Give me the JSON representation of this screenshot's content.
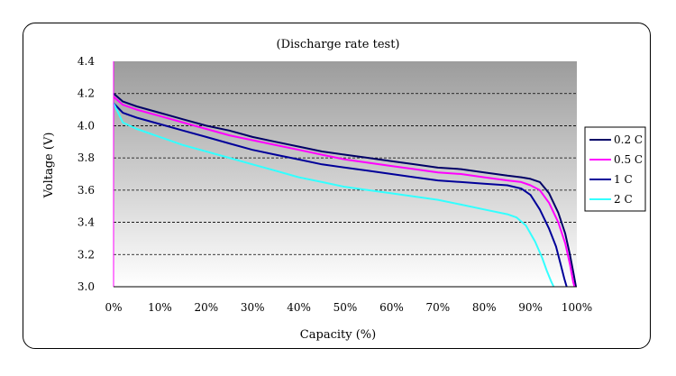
{
  "chart_data": {
    "type": "line",
    "title": "(Discharge rate test)",
    "xlabel": "Capacity (%)",
    "ylabel": "Voltage (V)",
    "xlim": [
      0,
      100
    ],
    "ylim": [
      3.0,
      4.4
    ],
    "x_ticks": [
      "0%",
      "10%",
      "20%",
      "30%",
      "40%",
      "50%",
      "60%",
      "70%",
      "80%",
      "90%",
      "100%"
    ],
    "y_ticks": [
      "3.0",
      "3.2",
      "3.4",
      "3.6",
      "3.8",
      "4.0",
      "4.2",
      "4.4"
    ],
    "grid": "horizontal-dashed",
    "legend_position": "right",
    "series": [
      {
        "name": "0.2 C",
        "color": "#000066",
        "points": [
          [
            0,
            4.2
          ],
          [
            2,
            4.15
          ],
          [
            5,
            4.12
          ],
          [
            10,
            4.08
          ],
          [
            15,
            4.04
          ],
          [
            20,
            4.0
          ],
          [
            25,
            3.97
          ],
          [
            30,
            3.93
          ],
          [
            35,
            3.9
          ],
          [
            40,
            3.87
          ],
          [
            45,
            3.84
          ],
          [
            50,
            3.82
          ],
          [
            55,
            3.8
          ],
          [
            60,
            3.78
          ],
          [
            65,
            3.76
          ],
          [
            70,
            3.74
          ],
          [
            75,
            3.73
          ],
          [
            80,
            3.71
          ],
          [
            85,
            3.69
          ],
          [
            88,
            3.68
          ],
          [
            90,
            3.67
          ],
          [
            92,
            3.65
          ],
          [
            94,
            3.58
          ],
          [
            96,
            3.46
          ],
          [
            97.5,
            3.33
          ],
          [
            98.5,
            3.2
          ],
          [
            99.3,
            3.08
          ],
          [
            99.8,
            3.0
          ]
        ]
      },
      {
        "name": "0.5 C",
        "color": "#ff00ff",
        "points": [
          [
            0,
            4.18
          ],
          [
            2,
            4.13
          ],
          [
            5,
            4.1
          ],
          [
            10,
            4.06
          ],
          [
            15,
            4.02
          ],
          [
            20,
            3.98
          ],
          [
            25,
            3.94
          ],
          [
            30,
            3.91
          ],
          [
            35,
            3.88
          ],
          [
            40,
            3.85
          ],
          [
            45,
            3.82
          ],
          [
            50,
            3.79
          ],
          [
            55,
            3.77
          ],
          [
            60,
            3.75
          ],
          [
            65,
            3.73
          ],
          [
            70,
            3.71
          ],
          [
            75,
            3.7
          ],
          [
            80,
            3.68
          ],
          [
            85,
            3.66
          ],
          [
            88,
            3.65
          ],
          [
            90,
            3.63
          ],
          [
            92,
            3.6
          ],
          [
            94,
            3.52
          ],
          [
            96,
            3.4
          ],
          [
            97.5,
            3.27
          ],
          [
            98.5,
            3.14
          ],
          [
            99.2,
            3.03
          ],
          [
            99.5,
            3.0
          ]
        ]
      },
      {
        "name": "1 C",
        "color": "#000099",
        "points": [
          [
            0,
            4.14
          ],
          [
            2,
            4.08
          ],
          [
            5,
            4.05
          ],
          [
            10,
            4.01
          ],
          [
            15,
            3.97
          ],
          [
            20,
            3.93
          ],
          [
            25,
            3.89
          ],
          [
            30,
            3.85
          ],
          [
            35,
            3.82
          ],
          [
            40,
            3.79
          ],
          [
            45,
            3.76
          ],
          [
            50,
            3.74
          ],
          [
            55,
            3.72
          ],
          [
            60,
            3.7
          ],
          [
            65,
            3.68
          ],
          [
            70,
            3.66
          ],
          [
            75,
            3.65
          ],
          [
            80,
            3.64
          ],
          [
            85,
            3.63
          ],
          [
            88,
            3.61
          ],
          [
            90,
            3.57
          ],
          [
            92,
            3.48
          ],
          [
            94,
            3.36
          ],
          [
            95.5,
            3.25
          ],
          [
            96.5,
            3.14
          ],
          [
            97.3,
            3.05
          ],
          [
            97.8,
            3.0
          ]
        ]
      },
      {
        "name": "2 C",
        "color": "#33ffff",
        "points": [
          [
            0,
            4.14
          ],
          [
            2,
            4.02
          ],
          [
            5,
            3.98
          ],
          [
            10,
            3.93
          ],
          [
            15,
            3.88
          ],
          [
            20,
            3.84
          ],
          [
            25,
            3.8
          ],
          [
            30,
            3.76
          ],
          [
            35,
            3.72
          ],
          [
            40,
            3.68
          ],
          [
            45,
            3.65
          ],
          [
            50,
            3.62
          ],
          [
            55,
            3.6
          ],
          [
            60,
            3.58
          ],
          [
            65,
            3.56
          ],
          [
            70,
            3.54
          ],
          [
            75,
            3.51
          ],
          [
            80,
            3.48
          ],
          [
            85,
            3.45
          ],
          [
            87,
            3.43
          ],
          [
            89,
            3.38
          ],
          [
            91,
            3.28
          ],
          [
            92.5,
            3.18
          ],
          [
            93.5,
            3.1
          ],
          [
            94.5,
            3.03
          ],
          [
            95,
            3.0
          ]
        ]
      }
    ]
  }
}
